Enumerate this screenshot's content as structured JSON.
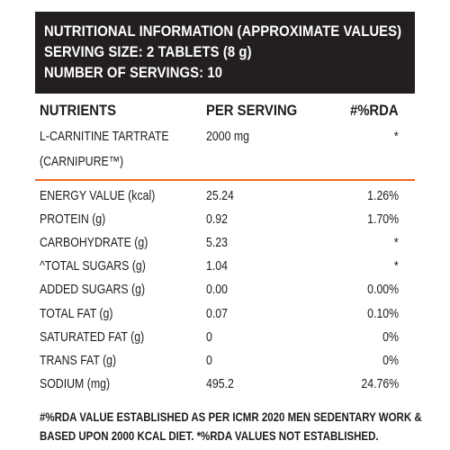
{
  "header": {
    "title": "NUTRITIONAL INFORMATION (APPROXIMATE VALUES)",
    "serving_size": "SERVING SIZE: 2 TABLETS (8 g)",
    "servings": "NUMBER OF SERVINGS: 10"
  },
  "columns": {
    "nutrients": "NUTRIENTS",
    "per_serving": "PER SERVING",
    "rda": "#%RDA"
  },
  "active": {
    "name_line1": "L-CARNITINE TARTRATE",
    "name_line2": "(CARNIPURE™)",
    "per_serving": "2000 mg",
    "rda": "*"
  },
  "rows": [
    {
      "name": "ENERGY VALUE (kcal)",
      "per_serving": "25.24",
      "rda": "1.26%"
    },
    {
      "name": "PROTEIN (g)",
      "per_serving": "0.92",
      "rda": "1.70%"
    },
    {
      "name": "CARBOHYDRATE (g)",
      "per_serving": "5.23",
      "rda": "*"
    },
    {
      "name": "^TOTAL SUGARS (g)",
      "per_serving": "1.04",
      "rda": "*"
    },
    {
      "name": "ADDED SUGARS (g)",
      "per_serving": "0.00",
      "rda": "0.00%"
    },
    {
      "name": "TOTAL FAT (g)",
      "per_serving": "0.07",
      "rda": "0.10%"
    },
    {
      "name": "SATURATED FAT (g)",
      "per_serving": "0",
      "rda": "0%"
    },
    {
      "name": "TRANS FAT (g)",
      "per_serving": "0",
      "rda": "0%"
    },
    {
      "name": "SODIUM (mg)",
      "per_serving": "495.2",
      "rda": "24.76%"
    }
  ],
  "footnote": {
    "line1": "#%RDA VALUE ESTABLISHED AS PER ICMR 2020 MEN SEDENTARY WORK &",
    "line2": "BASED UPON 2000 KCAL DIET. *%RDA VALUES NOT ESTABLISHED."
  },
  "colors": {
    "header_bg": "#231f20",
    "divider": "#f26522"
  }
}
